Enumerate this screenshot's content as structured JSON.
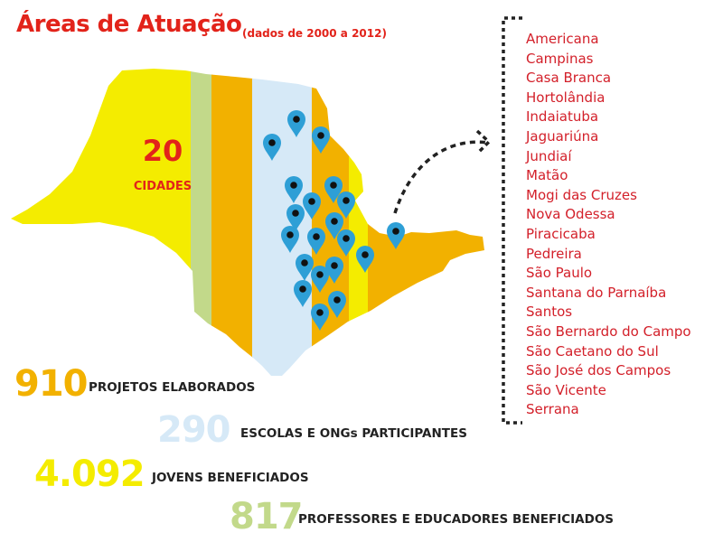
{
  "header": {
    "title": "Áreas de Atuação",
    "subtitle": "(dados de 2000 a 2012)"
  },
  "map": {
    "count": "20",
    "count_label": "CIDADES",
    "pin_icon": "map-pin-icon",
    "colors": {
      "yellow": "#f4ec00",
      "green": "#c2d98a",
      "orange": "#f2b100",
      "light_blue": "#d6e9f7",
      "pin": "#2e9fd6"
    }
  },
  "cities": [
    "Americana",
    "Campinas",
    "Casa Branca",
    "Hortolândia",
    "Indaiatuba",
    "Jaguariúna",
    "Jundiaí",
    "Matão",
    "Mogi das Cruzes",
    "Nova Odessa",
    "Piracicaba",
    "Pedreira",
    "São Paulo",
    "Santana do Parnaíba",
    "Santos",
    "São Bernardo do Campo",
    "São Caetano do Sul",
    "São José dos Campos",
    "São Vicente",
    "Serrana"
  ],
  "stats": [
    {
      "value": "910",
      "label": "PROJETOS ELABORADOS",
      "color": "#f2b100"
    },
    {
      "value": "290",
      "label": "ESCOLAS E ONGs PARTICIPANTES",
      "color": "#d6e9f7"
    },
    {
      "value": "4.092",
      "label": "JOVENS BENEFICIADOS",
      "color": "#f4ec00"
    },
    {
      "value": "817",
      "label": "PROFESSORES E EDUCADORES BENEFICIADOS",
      "color": "#c2d98a"
    }
  ]
}
